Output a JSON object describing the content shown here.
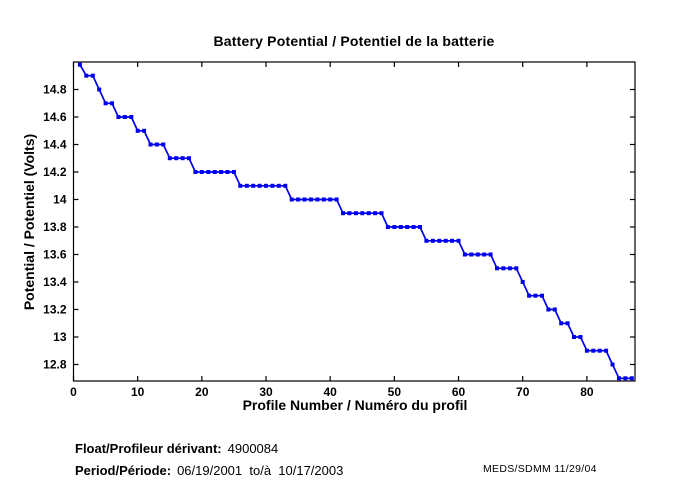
{
  "title": "Battery Potential / Potentiel de la batterie",
  "footer": {
    "float_label": "Float/Profileur dérivant:",
    "float_value": "4900084",
    "period_label": "Period/Période:",
    "period_value": "06/19/2001  to/à  10/17/2003",
    "credit": "MEDS/SDMM  11/29/04"
  },
  "chart_data": {
    "type": "line",
    "title": "Battery Potential / Potentiel de la batterie",
    "xlabel": "Profile Number / Numéro du profil",
    "ylabel": "Potential / Potentiel (Volts)",
    "series_name": "battery-potential",
    "line_color": "#0000EE",
    "marker": "filled-square",
    "grid": false,
    "legend": "none",
    "xlim": [
      0,
      87.5
    ],
    "ylim": [
      12.68,
      15.0
    ],
    "xticks": [
      0,
      10,
      20,
      30,
      40,
      50,
      60,
      70,
      80
    ],
    "xtick_labels": [
      "0",
      "10",
      "20",
      "30",
      "40",
      "50",
      "60",
      "70",
      "80"
    ],
    "yticks": [
      12.8,
      13.0,
      13.2,
      13.4,
      13.6,
      13.8,
      14.0,
      14.2,
      14.4,
      14.6,
      14.8
    ],
    "ytick_labels": [
      "12.8",
      "13",
      "13.2",
      "13.4",
      "13.6",
      "13.8",
      "14",
      "14.2",
      "14.4",
      "14.6",
      "14.8"
    ],
    "x": [
      1,
      2,
      3,
      4,
      5,
      6,
      7,
      8,
      9,
      10,
      11,
      12,
      13,
      14,
      15,
      16,
      17,
      18,
      19,
      20,
      21,
      22,
      23,
      24,
      25,
      26,
      27,
      28,
      29,
      30,
      31,
      32,
      33,
      34,
      35,
      36,
      37,
      38,
      39,
      40,
      41,
      42,
      43,
      44,
      45,
      46,
      47,
      48,
      49,
      50,
      51,
      52,
      53,
      54,
      55,
      56,
      57,
      58,
      59,
      60,
      61,
      62,
      63,
      64,
      65,
      66,
      67,
      68,
      69,
      70,
      71,
      72,
      73,
      74,
      75,
      76,
      77,
      78,
      79,
      80,
      81,
      82,
      83,
      84,
      85,
      86,
      87
    ],
    "values": [
      14.98,
      14.9,
      14.9,
      14.8,
      14.7,
      14.7,
      14.6,
      14.6,
      14.6,
      14.5,
      14.5,
      14.4,
      14.4,
      14.4,
      14.3,
      14.3,
      14.3,
      14.3,
      14.2,
      14.2,
      14.2,
      14.2,
      14.2,
      14.2,
      14.2,
      14.1,
      14.1,
      14.1,
      14.1,
      14.1,
      14.1,
      14.1,
      14.1,
      14.0,
      14.0,
      14.0,
      14.0,
      14.0,
      14.0,
      14.0,
      14.0,
      13.9,
      13.9,
      13.9,
      13.9,
      13.9,
      13.9,
      13.9,
      13.8,
      13.8,
      13.8,
      13.8,
      13.8,
      13.8,
      13.7,
      13.7,
      13.7,
      13.7,
      13.7,
      13.7,
      13.6,
      13.6,
      13.6,
      13.6,
      13.6,
      13.5,
      13.5,
      13.5,
      13.5,
      13.4,
      13.3,
      13.3,
      13.3,
      13.2,
      13.2,
      13.1,
      13.1,
      13.0,
      13.0,
      12.9,
      12.9,
      12.9,
      12.9,
      12.8,
      12.7,
      12.7,
      12.7
    ]
  }
}
